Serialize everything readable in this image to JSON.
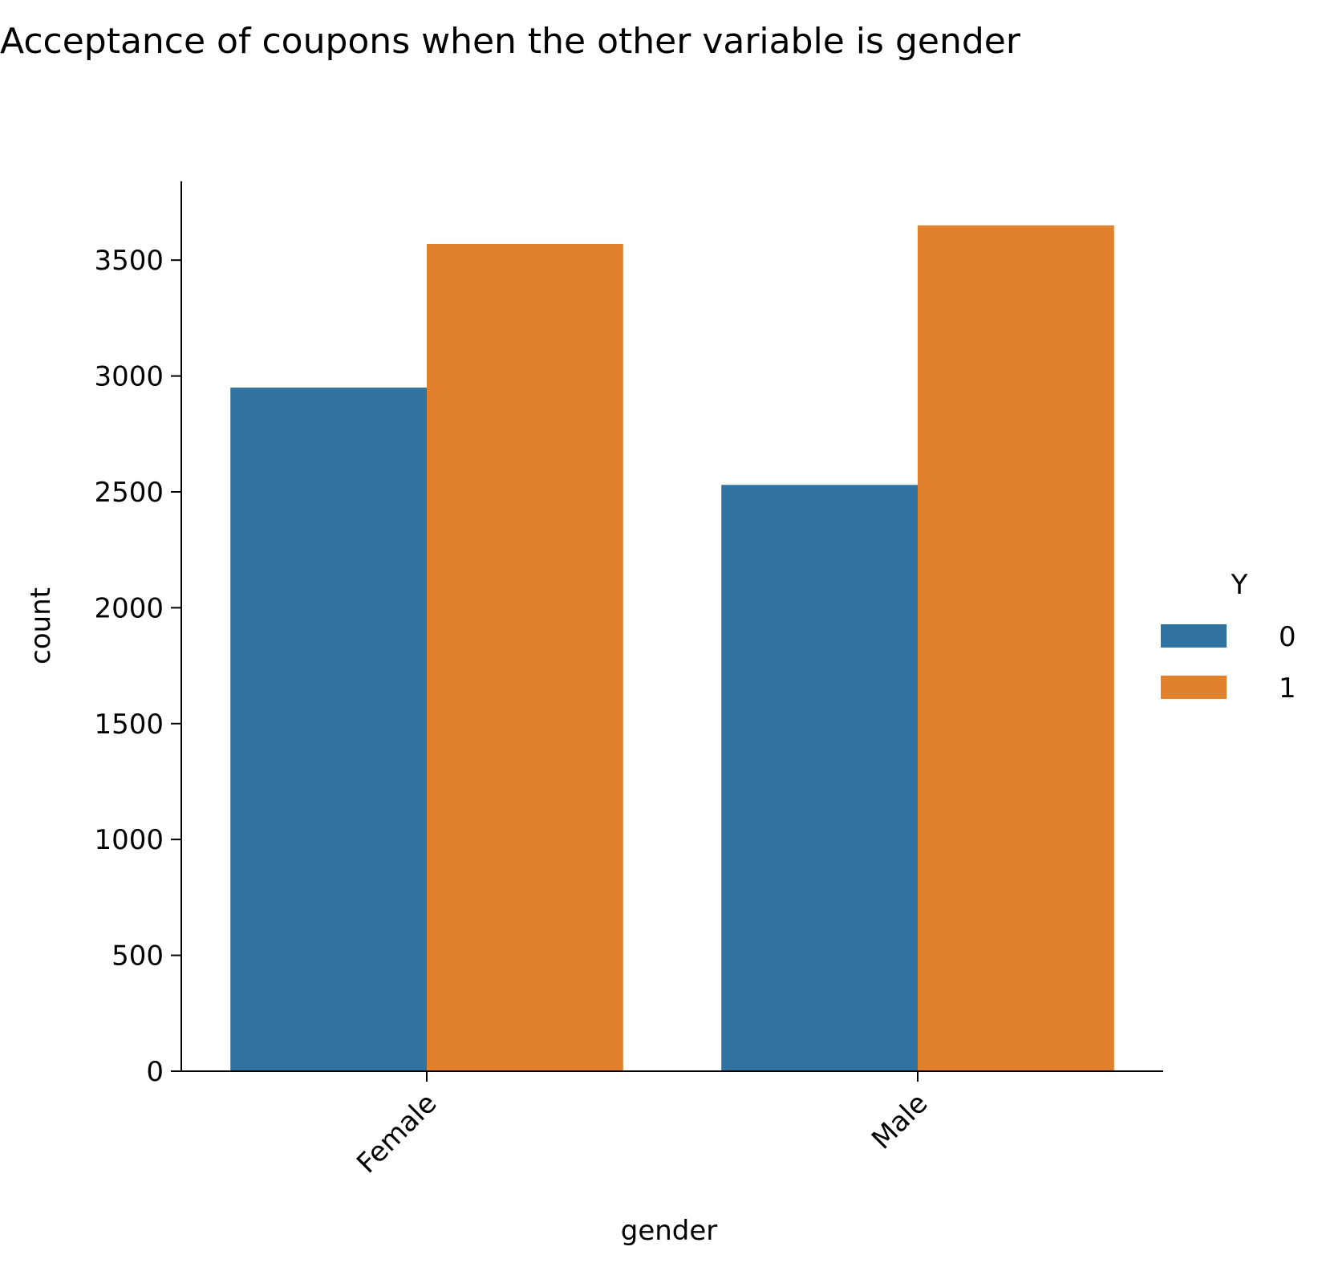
{
  "chart_data": {
    "type": "bar",
    "title": "Acceptance of coupons when the other variable is gender",
    "xlabel": "gender",
    "ylabel": "count",
    "categories": [
      "Female",
      "Male"
    ],
    "series": [
      {
        "name": "0",
        "values": [
          2950,
          2530
        ],
        "color": "#3274a1"
      },
      {
        "name": "1",
        "values": [
          3570,
          3650
        ],
        "color": "#e1812c"
      }
    ],
    "ylim": [
      0,
      3840
    ],
    "yticks": [
      "0",
      "500",
      "1000",
      "1500",
      "2000",
      "2500",
      "3000",
      "3500"
    ],
    "legend": {
      "title": "Y",
      "placement": "right"
    },
    "grid": false
  }
}
